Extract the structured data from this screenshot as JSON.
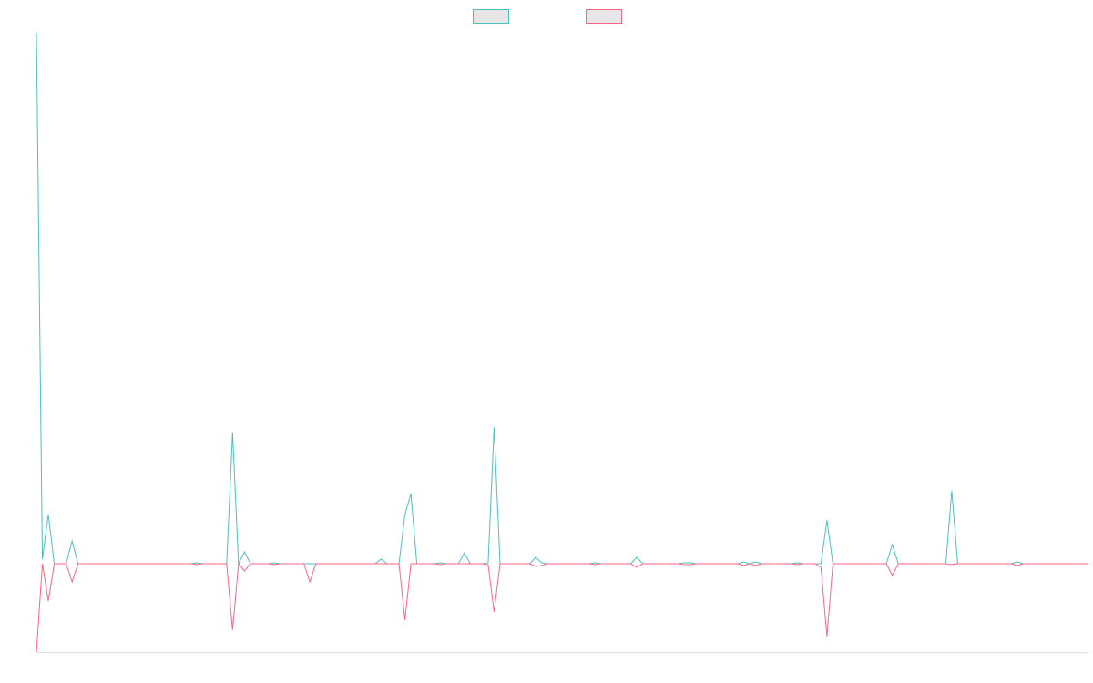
{
  "chart_data": {
    "type": "line",
    "legend": "top",
    "ylim": [
      -97,
      583
    ],
    "series": [
      {
        "color": "#4bc0c0",
        "values": [
          583,
          5,
          54,
          0,
          0,
          0,
          25,
          0,
          0,
          0,
          0,
          0,
          0,
          0,
          0,
          0,
          0,
          0,
          0,
          0,
          0,
          0,
          0,
          0,
          0,
          0,
          0,
          1,
          0,
          0,
          0,
          0,
          0,
          144,
          0,
          13,
          0,
          0,
          0,
          0,
          1,
          0,
          0,
          0,
          0,
          0,
          0,
          0,
          0,
          0,
          0,
          0,
          0,
          0,
          0,
          0,
          0,
          0,
          5,
          0,
          0,
          0,
          54,
          77,
          0,
          0,
          0,
          0,
          1,
          0,
          0,
          0,
          12,
          0,
          0,
          0,
          1,
          150,
          0,
          0,
          0,
          0,
          0,
          0,
          7,
          1,
          0,
          0,
          0,
          0,
          0,
          0,
          0,
          0,
          1,
          0,
          0,
          0,
          0,
          0,
          0,
          7,
          0,
          0,
          0,
          0,
          0,
          0,
          0,
          1,
          1,
          0,
          0,
          0,
          0,
          0,
          0,
          0,
          0,
          2,
          0,
          2,
          0,
          0,
          0,
          0,
          0,
          0,
          1,
          0,
          0,
          0,
          0,
          48,
          0,
          0,
          0,
          0,
          0,
          0,
          0,
          0,
          0,
          0,
          21,
          0,
          0,
          0,
          0,
          0,
          0,
          0,
          0,
          0,
          80,
          0,
          0,
          0,
          0,
          0,
          0,
          0,
          0,
          0,
          0,
          2,
          0,
          0,
          0,
          0,
          0,
          0,
          0,
          0,
          0,
          0,
          0,
          0
        ]
      },
      {
        "color": "#ff6384",
        "values": [
          -97,
          0,
          -41,
          0,
          0,
          0,
          -20,
          0,
          0,
          0,
          0,
          0,
          0,
          0,
          0,
          0,
          0,
          0,
          0,
          0,
          0,
          0,
          0,
          0,
          0,
          0,
          0,
          -1,
          0,
          0,
          0,
          0,
          0,
          -73,
          0,
          -8,
          0,
          0,
          0,
          0,
          -1,
          0,
          0,
          0,
          0,
          0,
          -20,
          0,
          0,
          0,
          0,
          0,
          0,
          0,
          0,
          0,
          0,
          0,
          0,
          0,
          0,
          0,
          -62,
          0,
          0,
          0,
          0,
          0,
          -1,
          0,
          0,
          0,
          0,
          0,
          0,
          0,
          -1,
          -53,
          0,
          0,
          0,
          0,
          0,
          0,
          -3,
          -2,
          0,
          0,
          0,
          0,
          0,
          0,
          0,
          0,
          -1,
          0,
          0,
          0,
          0,
          0,
          0,
          -4,
          0,
          0,
          0,
          0,
          0,
          0,
          0,
          -1,
          -1,
          0,
          0,
          0,
          0,
          0,
          0,
          0,
          0,
          -2,
          0,
          -2,
          0,
          0,
          0,
          0,
          0,
          0,
          -1,
          0,
          0,
          0,
          -4,
          -80,
          0,
          0,
          0,
          0,
          0,
          0,
          0,
          0,
          0,
          0,
          -13,
          0,
          0,
          0,
          0,
          0,
          0,
          0,
          0,
          0,
          -1,
          0,
          0,
          0,
          0,
          0,
          0,
          0,
          0,
          0,
          0,
          -2,
          0,
          0,
          0,
          0,
          0,
          0,
          0,
          0,
          0,
          0,
          0,
          0
        ]
      }
    ]
  }
}
